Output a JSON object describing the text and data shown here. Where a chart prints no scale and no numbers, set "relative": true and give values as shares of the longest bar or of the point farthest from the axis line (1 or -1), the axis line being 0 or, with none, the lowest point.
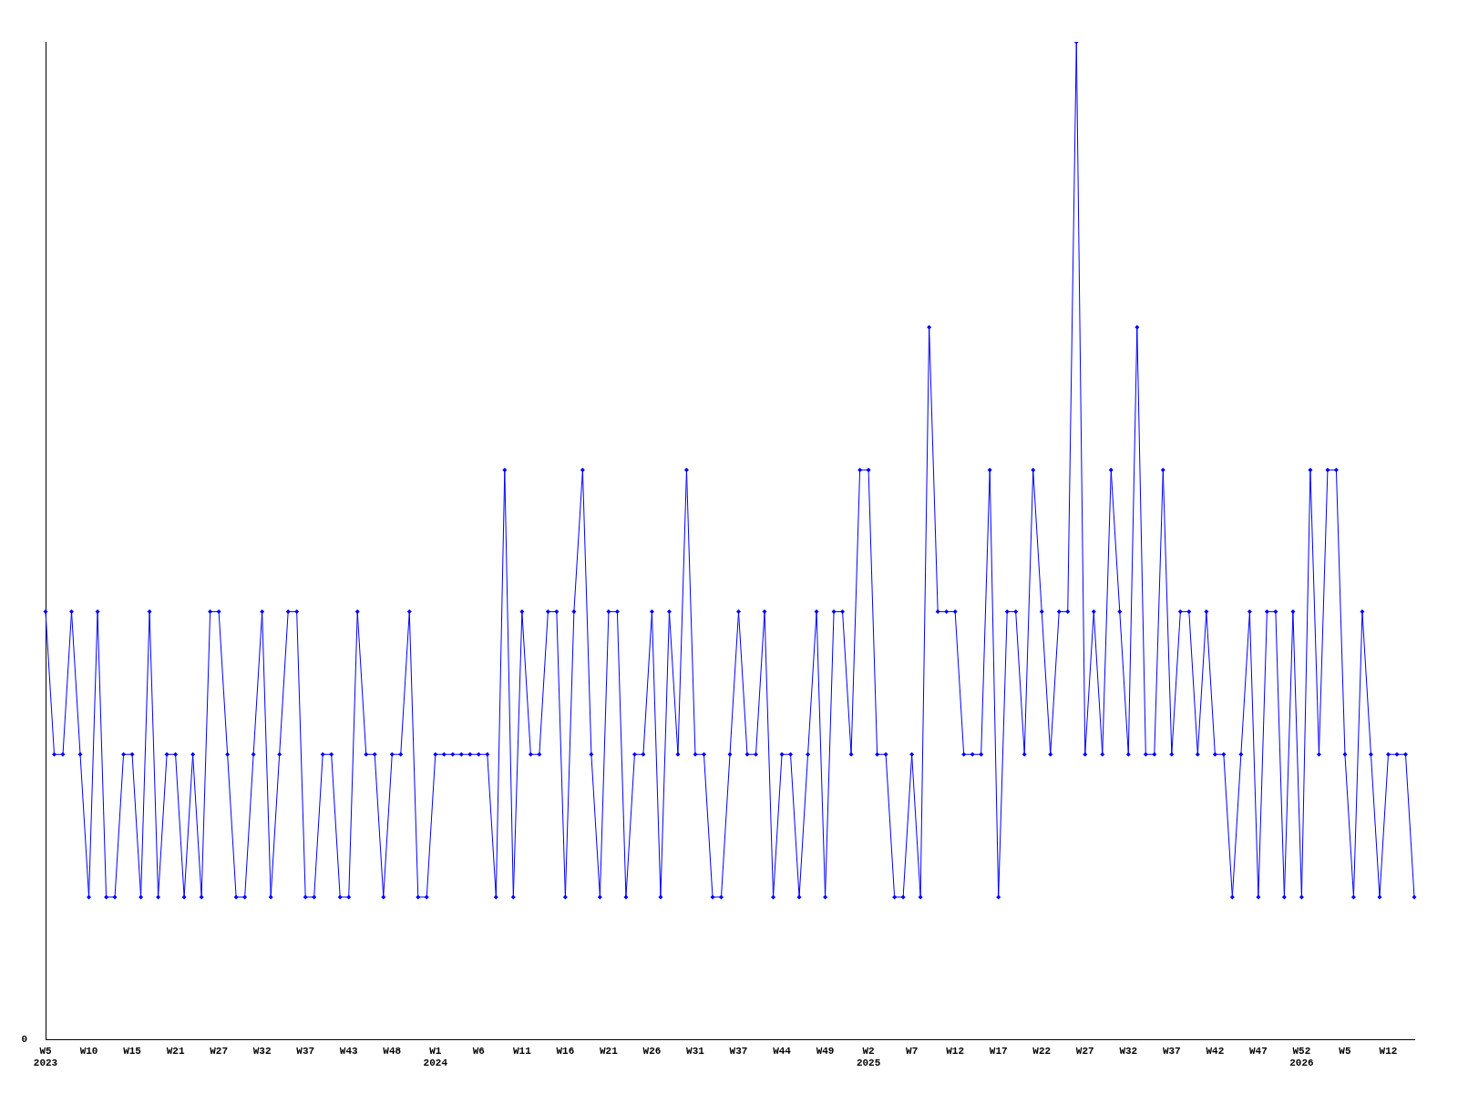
{
  "chart_data": {
    "type": "line",
    "relative": true,
    "grid": false,
    "legend": false,
    "marker": "diamond",
    "line_style": "solid",
    "annotations": [
      "0"
    ],
    "categories": [
      "W5\n2023",
      null,
      null,
      null,
      null,
      "W10",
      null,
      null,
      null,
      null,
      "W15",
      null,
      null,
      null,
      null,
      "W21",
      null,
      null,
      null,
      null,
      "W27",
      null,
      null,
      null,
      null,
      "W32",
      null,
      null,
      null,
      null,
      "W37",
      null,
      null,
      null,
      null,
      "W43",
      null,
      null,
      null,
      null,
      "W48",
      null,
      null,
      null,
      null,
      "W1\n2024",
      null,
      null,
      null,
      null,
      "W6",
      null,
      null,
      null,
      null,
      "W11",
      null,
      null,
      null,
      null,
      "W16",
      null,
      null,
      null,
      null,
      "W21",
      null,
      null,
      null,
      null,
      "W26",
      null,
      null,
      null,
      null,
      "W31",
      null,
      null,
      null,
      null,
      "W37",
      null,
      null,
      null,
      null,
      "W44",
      null,
      null,
      null,
      null,
      "W49",
      null,
      null,
      null,
      null,
      "W2\n2025",
      null,
      null,
      null,
      null,
      "W7",
      null,
      null,
      null,
      null,
      "W12",
      null,
      null,
      null,
      null,
      "W17",
      null,
      null,
      null,
      null,
      "W22",
      null,
      null,
      null,
      null,
      "W27",
      null,
      null,
      null,
      null,
      "W32",
      null,
      null,
      null,
      null,
      "W37",
      null,
      null,
      null,
      null,
      "W42",
      null,
      null,
      null,
      null,
      "W47",
      null,
      null,
      null,
      null,
      "W52\n2026",
      null,
      null,
      null,
      null,
      "W5",
      null,
      null,
      null,
      null,
      "W12",
      null,
      null,
      null
    ],
    "series": [
      {
        "color": "#0000ff",
        "values": [
          0.429,
          0.286,
          0.286,
          0.429,
          0.286,
          0.143,
          0.429,
          0.143,
          0.143,
          0.286,
          0.286,
          0.143,
          0.429,
          0.143,
          0.286,
          0.286,
          0.143,
          0.286,
          0.143,
          0.429,
          0.429,
          0.286,
          0.143,
          0.143,
          0.286,
          0.429,
          0.143,
          0.286,
          0.429,
          0.429,
          0.143,
          0.143,
          0.286,
          0.286,
          0.143,
          0.143,
          0.429,
          0.286,
          0.286,
          0.143,
          0.286,
          0.286,
          0.429,
          0.143,
          0.143,
          0.286,
          0.286,
          0.286,
          0.286,
          0.286,
          0.286,
          0.286,
          0.143,
          0.571,
          0.143,
          0.429,
          0.286,
          0.286,
          0.429,
          0.429,
          0.143,
          0.429,
          0.571,
          0.286,
          0.143,
          0.429,
          0.429,
          0.143,
          0.286,
          0.286,
          0.429,
          0.143,
          0.429,
          0.286,
          0.571,
          0.286,
          0.286,
          0.143,
          0.143,
          0.286,
          0.429,
          0.286,
          0.286,
          0.429,
          0.143,
          0.286,
          0.286,
          0.143,
          0.286,
          0.429,
          0.143,
          0.429,
          0.429,
          0.286,
          0.571,
          0.571,
          0.286,
          0.286,
          0.143,
          0.143,
          0.286,
          0.143,
          0.714,
          0.429,
          0.429,
          0.429,
          0.286,
          0.286,
          0.286,
          0.571,
          0.143,
          0.429,
          0.429,
          0.286,
          0.571,
          0.429,
          0.286,
          0.429,
          0.429,
          1,
          0.286,
          0.429,
          0.286,
          0.571,
          0.429,
          0.286,
          0.714,
          0.286,
          0.286,
          0.571,
          0.286,
          0.429,
          0.429,
          0.286,
          0.429,
          0.286,
          0.286,
          0.143,
          0.286,
          0.429,
          0.143,
          0.429,
          0.429,
          0.143,
          0.429,
          0.143,
          0.571,
          0.286,
          0.571,
          0.571,
          0.286,
          0.143,
          0.429,
          0.286,
          0.143,
          0.286,
          0.286,
          0.286,
          0.143
        ]
      }
    ]
  }
}
